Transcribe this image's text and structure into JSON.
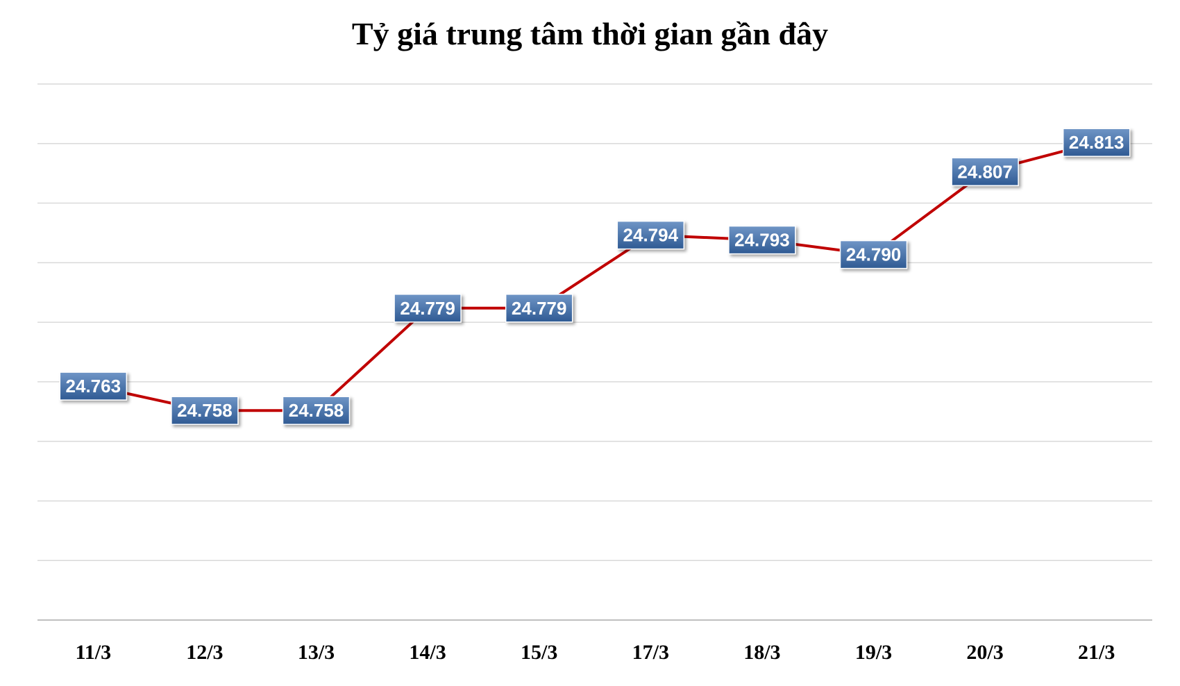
{
  "chart_data": {
    "type": "line",
    "title": "Tỷ giá trung tâm thời gian gần đây",
    "categories": [
      "11/3",
      "12/3",
      "13/3",
      "14/3",
      "15/3",
      "17/3",
      "18/3",
      "19/3",
      "20/3",
      "21/3"
    ],
    "series": [
      {
        "values": [
          24763,
          24758,
          24758,
          24779,
          24779,
          24794,
          24793,
          24790,
          24807,
          24813
        ],
        "data_labels": [
          "24.763",
          "24.758",
          "24.758",
          "24.779",
          "24.779",
          "24.794",
          "24.793",
          "24.790",
          "24.807",
          "24.813"
        ]
      }
    ],
    "ylim": [
      24715,
      24825
    ],
    "y_axis_visible": false,
    "grid": true,
    "legend": "none",
    "colors": {
      "line": "#c00000",
      "label_fill_top": "#6f95c6",
      "label_fill_bottom": "#2f5a93",
      "label_text": "#ffffff",
      "grid": "#d9d9d9"
    }
  }
}
